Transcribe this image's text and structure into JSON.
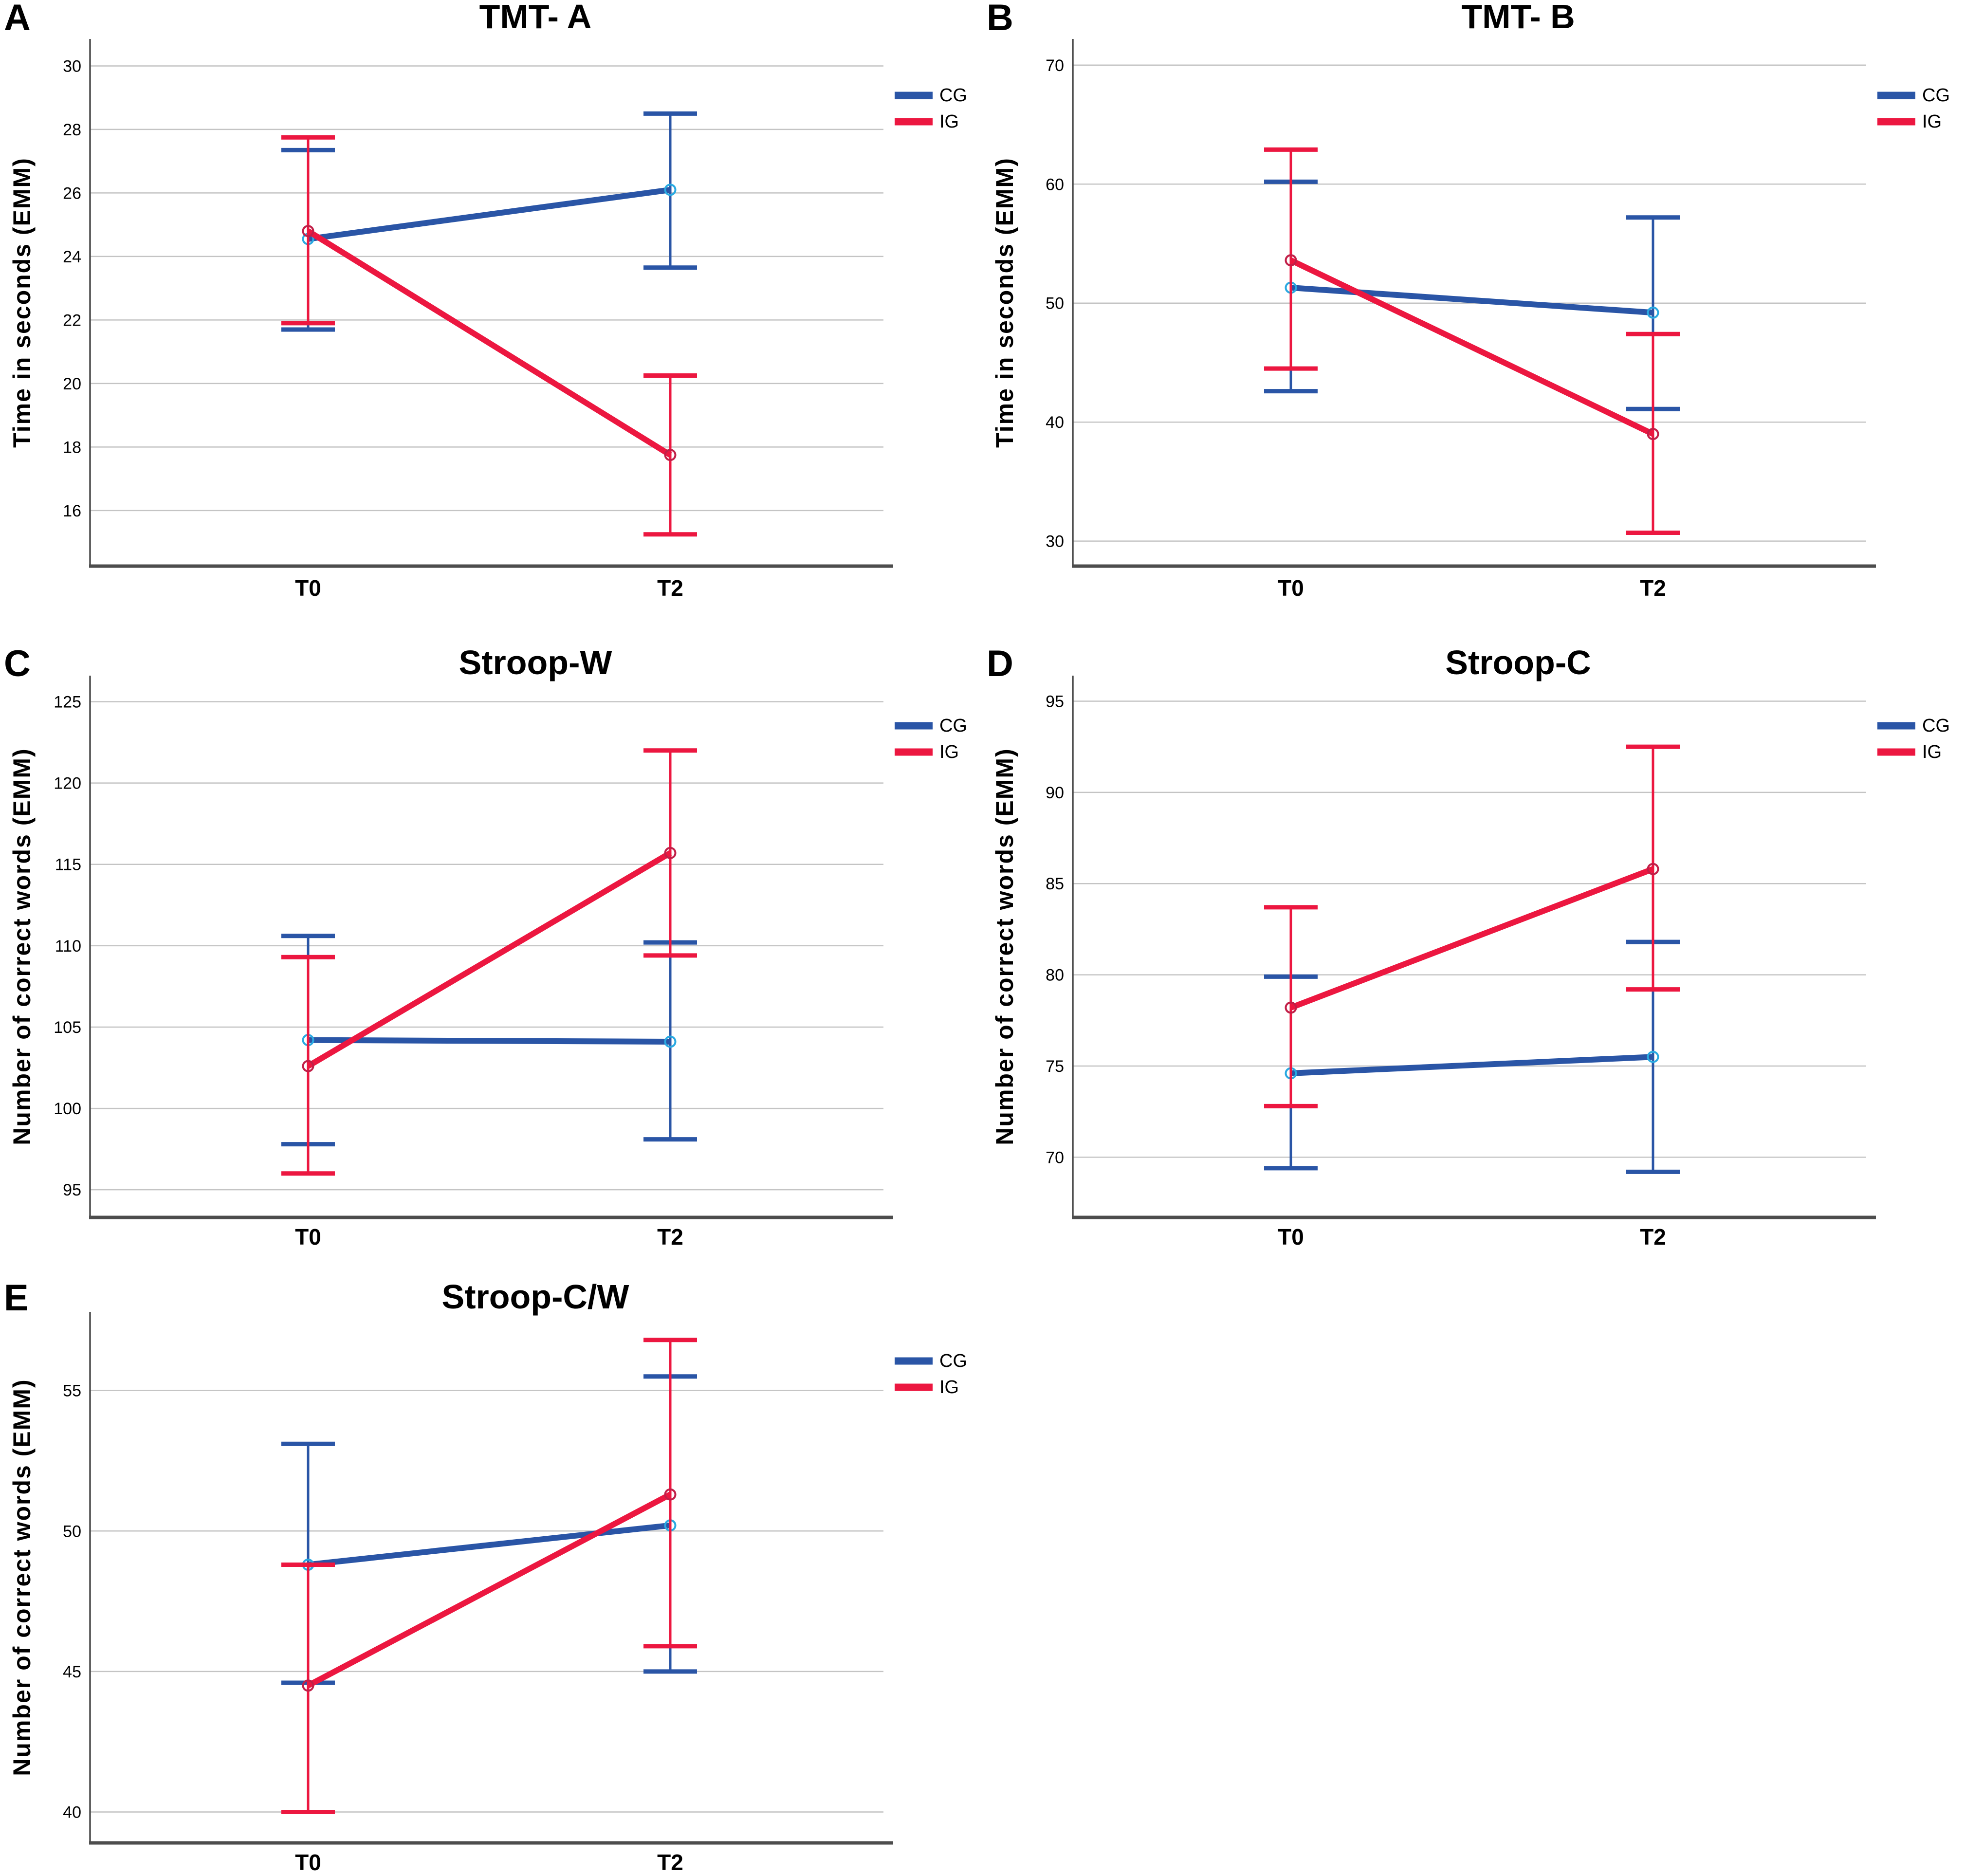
{
  "figure": {
    "legend": {
      "cg_label": "CG",
      "ig_label": "IG"
    },
    "colors": {
      "cg_line": "#2A55A6",
      "cg_marker": "#29A9E1",
      "ig_line": "#EC1740",
      "ig_marker": "#C11F48",
      "gridline": "#C4C4C4",
      "axis": "#4D4D4D",
      "text": "#000000"
    },
    "x_categories": [
      "T0",
      "T2"
    ]
  },
  "chart_data": [
    {
      "id": "A",
      "type": "line",
      "letter": "A",
      "title": "TMT- A",
      "xlabel": "",
      "ylabel": "Time in seconds (EMM)",
      "categories": [
        "T0",
        "T2"
      ],
      "yticks": [
        16,
        18,
        20,
        22,
        24,
        26,
        28,
        30
      ],
      "ylim": [
        14.25,
        30.85
      ],
      "grid": true,
      "legend_position": "top-right",
      "series": [
        {
          "name": "CG",
          "values": [
            24.55,
            26.1
          ],
          "ci_low": [
            21.7,
            23.65
          ],
          "ci_high": [
            27.35,
            28.5
          ]
        },
        {
          "name": "IG",
          "values": [
            24.8,
            17.75
          ],
          "ci_low": [
            21.9,
            15.25
          ],
          "ci_high": [
            27.75,
            20.25
          ]
        }
      ]
    },
    {
      "id": "B",
      "type": "line",
      "letter": "B",
      "title": "TMT- B",
      "xlabel": "",
      "ylabel": "Time in seconds (EMM)",
      "categories": [
        "T0",
        "T2"
      ],
      "yticks": [
        30,
        40,
        50,
        60,
        70
      ],
      "ylim": [
        27.9,
        72.2
      ],
      "grid": true,
      "legend_position": "top-right",
      "series": [
        {
          "name": "CG",
          "values": [
            51.3,
            49.2
          ],
          "ci_low": [
            42.6,
            41.1
          ],
          "ci_high": [
            60.2,
            57.2
          ]
        },
        {
          "name": "IG",
          "values": [
            53.6,
            39.0
          ],
          "ci_low": [
            44.5,
            30.7
          ],
          "ci_high": [
            62.9,
            47.4
          ]
        }
      ]
    },
    {
      "id": "C",
      "type": "line",
      "letter": "C",
      "title": "Stroop-W",
      "xlabel": "",
      "ylabel": "Number of correct words (EMM)",
      "categories": [
        "T0",
        "T2"
      ],
      "yticks": [
        95,
        100,
        105,
        110,
        115,
        120,
        125
      ],
      "ylim": [
        93.3,
        126.6
      ],
      "grid": true,
      "legend_position": "top-right",
      "series": [
        {
          "name": "CG",
          "values": [
            104.2,
            104.1
          ],
          "ci_low": [
            97.8,
            98.1
          ],
          "ci_high": [
            110.6,
            110.2
          ]
        },
        {
          "name": "IG",
          "values": [
            102.6,
            115.7
          ],
          "ci_low": [
            96.0,
            109.4
          ],
          "ci_high": [
            109.3,
            122.0
          ]
        }
      ]
    },
    {
      "id": "D",
      "type": "line",
      "letter": "D",
      "title": "Stroop-C",
      "xlabel": "",
      "ylabel": "Number of correct words (EMM)",
      "categories": [
        "T0",
        "T2"
      ],
      "yticks": [
        70,
        75,
        80,
        85,
        90,
        95
      ],
      "ylim": [
        66.7,
        96.4
      ],
      "grid": true,
      "legend_position": "top-right",
      "series": [
        {
          "name": "CG",
          "values": [
            74.6,
            75.5
          ],
          "ci_low": [
            69.4,
            69.2
          ],
          "ci_high": [
            79.9,
            81.8
          ]
        },
        {
          "name": "IG",
          "values": [
            78.2,
            85.8
          ],
          "ci_low": [
            72.8,
            79.2
          ],
          "ci_high": [
            83.7,
            92.5
          ]
        }
      ]
    },
    {
      "id": "E",
      "type": "line",
      "letter": "E",
      "title": "Stroop-C/W",
      "xlabel": "",
      "ylabel": "Number of correct words (EMM)",
      "categories": [
        "T0",
        "T2"
      ],
      "yticks": [
        40,
        45,
        50,
        55
      ],
      "ylim": [
        38.9,
        57.8
      ],
      "grid": true,
      "legend_position": "top-right",
      "series": [
        {
          "name": "CG",
          "values": [
            48.8,
            50.2
          ],
          "ci_low": [
            44.6,
            45.0
          ],
          "ci_high": [
            53.1,
            55.5
          ]
        },
        {
          "name": "IG",
          "values": [
            44.5,
            51.3
          ],
          "ci_low": [
            40.0,
            45.9
          ],
          "ci_high": [
            48.8,
            56.8
          ]
        }
      ]
    }
  ]
}
